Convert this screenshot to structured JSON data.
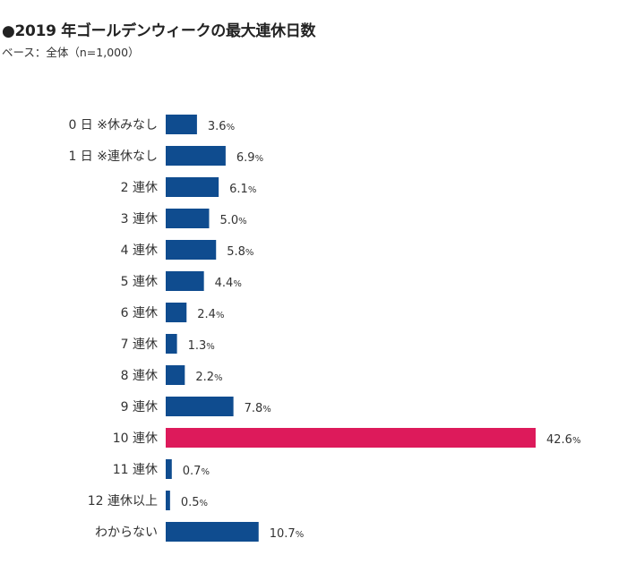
{
  "chart_data": {
    "type": "bar",
    "orientation": "horizontal",
    "title": "●2019 年ゴールデンウィークの最大連休日数",
    "subtitle": "ベース：全体（n=1,000）",
    "categories": [
      "0 日 ※休みなし",
      "1 日 ※連休なし",
      "2 連休",
      "3 連休",
      "4 連休",
      "5 連休",
      "6 連休",
      "7 連休",
      "8 連休",
      "9 連休",
      "10 連休",
      "11 連休",
      "12 連休以上",
      "わからない"
    ],
    "values": [
      3.6,
      6.9,
      6.1,
      5.0,
      5.8,
      4.4,
      2.4,
      1.3,
      2.2,
      7.8,
      42.6,
      0.7,
      0.5,
      10.7
    ],
    "value_labels": [
      "3.6",
      "6.9",
      "6.1",
      "5.0",
      "5.8",
      "4.4",
      "2.4",
      "1.3",
      "2.2",
      "7.8",
      "42.6",
      "0.7",
      "0.5",
      "10.7"
    ],
    "unit": "%",
    "highlight_index": 10,
    "xlim": [
      0,
      42.6
    ],
    "grid": false,
    "colors": {
      "default": "#0f4c8f",
      "highlight": "#dd1a5b"
    }
  }
}
